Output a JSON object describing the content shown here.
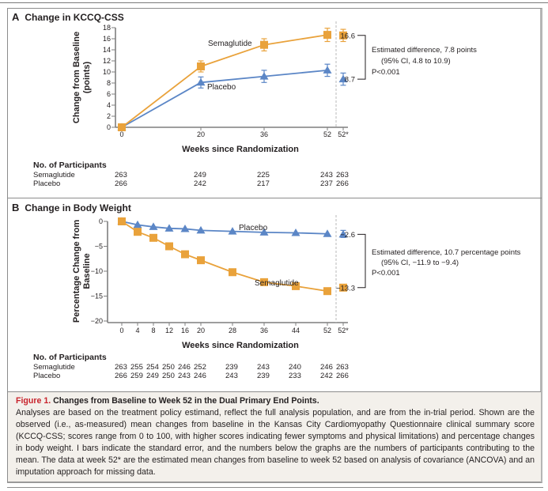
{
  "figure": {
    "label": "Figure 1.",
    "title": "Changes from Baseline to Week 52 in the Dual Primary End Points.",
    "caption": "Analyses are based on the treatment policy estimand, reflect the full analysis population, and are from the in-trial period. Shown are the observed (i.e., as-measured) mean changes from baseline in the Kansas City Cardiomyopathy Questionnaire clinical summary score (KCCQ-CSS; scores range from 0 to 100, with higher scores indicating fewer symptoms and physical limitations) and percentage changes in body weight. I bars indicate the standard error, and the numbers below the graphs are the numbers of participants contributing to the mean. The data at week 52* are the estimated mean changes from baseline to week 52 based on analysis of covariance (ANCOVA) and an imputation approach for missing data."
  },
  "colors": {
    "semaglutide": "#e9a23b",
    "placebo": "#5b86c6"
  },
  "chart_data": [
    {
      "id": "A",
      "type": "line",
      "panel_letter": "A",
      "title": "Change in KCCQ-CSS",
      "xlabel": "Weeks since Randomization",
      "ylabel": [
        "Change from Baseline",
        "(points)"
      ],
      "ylim": [
        0,
        18
      ],
      "yticks": [
        0,
        2,
        4,
        6,
        8,
        10,
        12,
        14,
        16,
        18
      ],
      "ytick_labels": [
        "0",
        "2",
        "4",
        "6",
        "8",
        "10",
        "12",
        "14",
        "16",
        "18"
      ],
      "x": [
        0,
        20,
        36,
        52
      ],
      "xtick_labels": [
        "0",
        "20",
        "36",
        "52",
        "52*"
      ],
      "grid": false,
      "series": [
        {
          "name": "Semaglutide",
          "marker": "square",
          "values": [
            0,
            11.0,
            14.9,
            16.7
          ],
          "se": [
            0,
            1.0,
            1.1,
            1.2
          ],
          "estimate_52star": 16.6,
          "estimate_se": 1.1
        },
        {
          "name": "Placebo",
          "marker": "triangle",
          "values": [
            0,
            8.1,
            9.2,
            10.3
          ],
          "se": [
            0,
            1.0,
            1.1,
            1.1
          ],
          "estimate_52star": 8.7,
          "estimate_se": 1.1
        }
      ],
      "estimate_labels": [
        "16.6",
        "8.7"
      ],
      "annotation": [
        "Estimated difference, 7.8 points",
        "(95% CI, 4.8 to 10.9)",
        "P<0.001"
      ],
      "participants": {
        "heading": "No. of Participants",
        "columns": [
          "0",
          "20",
          "36",
          "52",
          "52*"
        ],
        "rows": [
          {
            "label": "Semaglutide",
            "values": [
              "263",
              "249",
              "225",
              "243",
              "263"
            ]
          },
          {
            "label": "Placebo",
            "values": [
              "266",
              "242",
              "217",
              "237",
              "266"
            ]
          }
        ]
      }
    },
    {
      "id": "B",
      "type": "line",
      "panel_letter": "B",
      "title": "Change in Body Weight",
      "xlabel": "Weeks since Randomization",
      "ylabel": [
        "Percentage Change from",
        "Baseline"
      ],
      "ylim": [
        -20,
        0
      ],
      "yticks": [
        0,
        -5,
        -10,
        -15,
        -20
      ],
      "ytick_labels": [
        "0",
        "−5",
        "−10",
        "−15",
        "−20"
      ],
      "x": [
        0,
        4,
        8,
        12,
        16,
        20,
        28,
        36,
        44,
        52
      ],
      "xtick_labels": [
        "0",
        "4",
        "8",
        "12",
        "16",
        "20",
        "28",
        "36",
        "44",
        "52",
        "52*"
      ],
      "grid": false,
      "series": [
        {
          "name": "Semaglutide",
          "marker": "square",
          "values": [
            0,
            -2.1,
            -3.3,
            -5.0,
            -6.6,
            -7.8,
            -10.2,
            -12.2,
            -13.0,
            -14.0
          ],
          "estimate_52star": -13.3
        },
        {
          "name": "Placebo",
          "marker": "triangle",
          "values": [
            0,
            -0.7,
            -1.1,
            -1.4,
            -1.5,
            -1.8,
            -2.0,
            -2.2,
            -2.3,
            -2.5
          ],
          "estimate_52star": -2.6
        }
      ],
      "estimate_labels": [
        "−2.6",
        "−13.3"
      ],
      "annotation": [
        "Estimated difference, 10.7 percentage points",
        "(95% CI, −11.9 to −9.4)",
        "P<0.001"
      ],
      "participants": {
        "heading": "No. of Participants",
        "columns": [
          "0",
          "4",
          "8",
          "12",
          "16",
          "20",
          "28",
          "36",
          "44",
          "52",
          "52*"
        ],
        "rows": [
          {
            "label": "Semaglutide",
            "values": [
              "263",
              "255",
              "254",
              "250",
              "246",
              "252",
              "239",
              "243",
              "240",
              "246",
              "263"
            ]
          },
          {
            "label": "Placebo",
            "values": [
              "266",
              "259",
              "249",
              "250",
              "243",
              "246",
              "243",
              "239",
              "233",
              "242",
              "266"
            ]
          }
        ]
      }
    }
  ]
}
